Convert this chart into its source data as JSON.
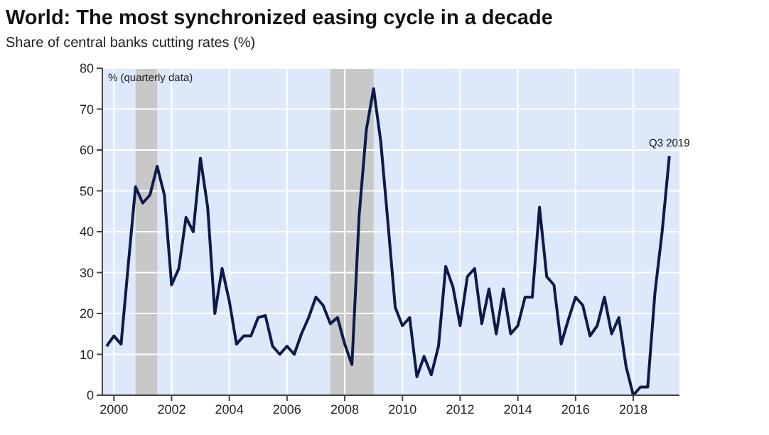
{
  "chart_data": {
    "type": "line",
    "title": "World: The most synchronized easing cycle in a decade",
    "subtitle": "Share of central banks cutting rates (%)",
    "x": [
      1999.75,
      2000,
      2000.25,
      2000.5,
      2000.75,
      2001,
      2001.25,
      2001.5,
      2001.75,
      2002,
      2002.25,
      2002.5,
      2002.75,
      2003,
      2003.25,
      2003.5,
      2003.75,
      2004,
      2004.25,
      2004.5,
      2004.75,
      2005,
      2005.25,
      2005.5,
      2005.75,
      2006,
      2006.25,
      2006.5,
      2006.75,
      2007,
      2007.25,
      2007.5,
      2007.75,
      2008,
      2008.25,
      2008.5,
      2008.75,
      2009,
      2009.25,
      2009.5,
      2009.75,
      2010,
      2010.25,
      2010.5,
      2010.75,
      2011,
      2011.25,
      2011.5,
      2011.75,
      2012,
      2012.25,
      2012.5,
      2012.75,
      2013,
      2013.25,
      2013.5,
      2013.75,
      2014,
      2014.25,
      2014.5,
      2014.75,
      2015,
      2015.25,
      2015.5,
      2015.75,
      2016,
      2016.25,
      2016.5,
      2016.75,
      2017,
      2017.25,
      2017.5,
      2017.75,
      2018,
      2018.25,
      2018.5,
      2018.75,
      2019,
      2019.25
    ],
    "series": [
      {
        "color": "#0d1b4b",
        "values": [
          12,
          14.5,
          12.5,
          32,
          51,
          47,
          49,
          56,
          49,
          27,
          31,
          43.5,
          40,
          58,
          46,
          20,
          31,
          23,
          12.5,
          14.5,
          14.5,
          19,
          19.5,
          12,
          10,
          12,
          10,
          15,
          19,
          24,
          22,
          17.5,
          19,
          12.5,
          7.5,
          44,
          65,
          75,
          62,
          42,
          21.5,
          17,
          19,
          4.5,
          9.5,
          5,
          12,
          31.5,
          26.5,
          17,
          29,
          31,
          17.5,
          26,
          15,
          26,
          15,
          17,
          24,
          24,
          46,
          29,
          27,
          12.5,
          18.5,
          24,
          22,
          14.5,
          17,
          24,
          15,
          19,
          7,
          0,
          2,
          2,
          25,
          40,
          58.5
        ]
      }
    ],
    "xlim": [
      1999.6,
      2019.6
    ],
    "xticks": [
      2000,
      2002,
      2004,
      2006,
      2008,
      2010,
      2012,
      2014,
      2016,
      2018
    ],
    "ylim": [
      0,
      80
    ],
    "yticks": [
      0,
      10,
      20,
      30,
      40,
      50,
      60,
      70,
      80
    ],
    "bands": [
      {
        "axis": "x",
        "from": 2000.75,
        "to": 2001.5,
        "color": "#c8c8c8"
      },
      {
        "axis": "x",
        "from": 2007.5,
        "to": 2009,
        "color": "#c8c8c8"
      }
    ],
    "annotations": [
      "% (quarterly data)",
      {
        "text": "Q3 2019",
        "x": 2019.25,
        "y": 58.5
      }
    ],
    "grid": true,
    "line_style": "solid",
    "marker": "none"
  }
}
